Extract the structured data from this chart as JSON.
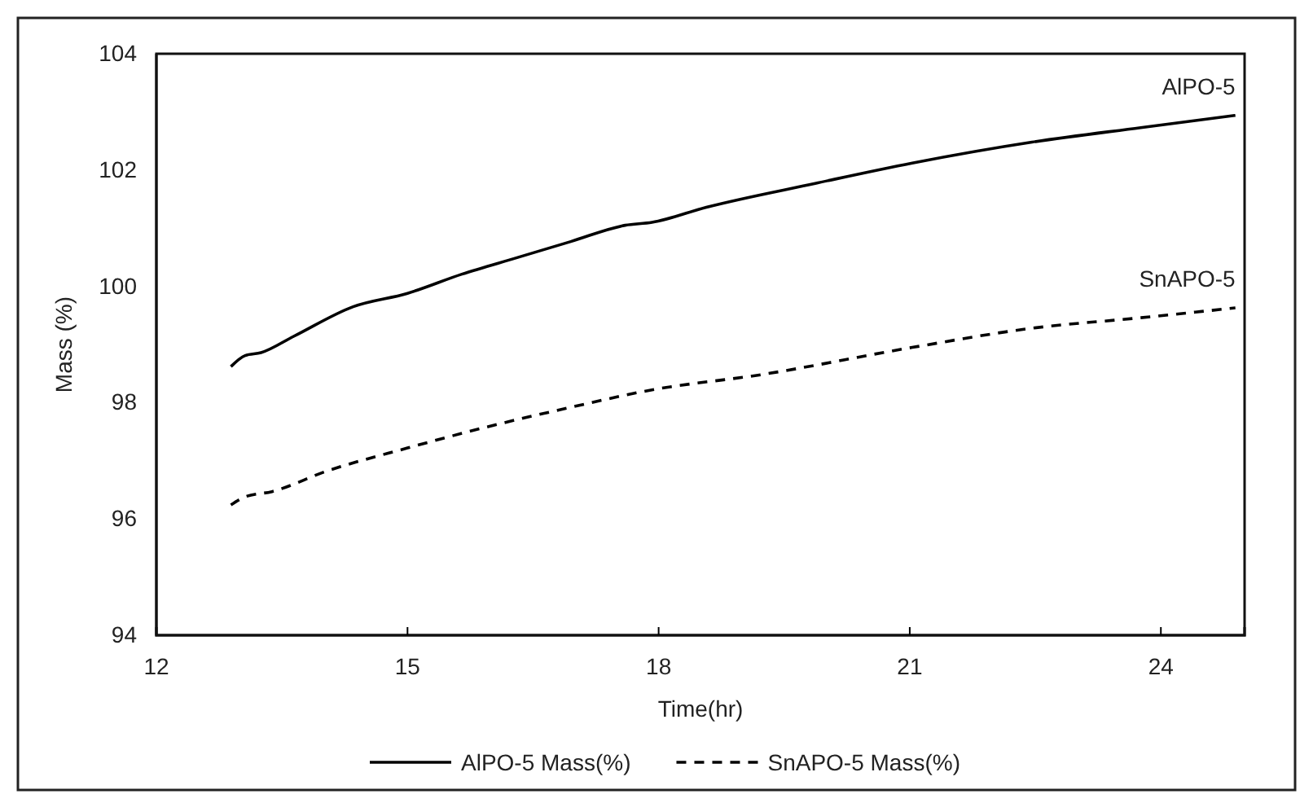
{
  "chart_data": {
    "type": "line",
    "xlabel": "Time(hr)",
    "ylabel": "Mass (%)",
    "xlim": [
      12,
      25
    ],
    "xticks": [
      12,
      15,
      18,
      21,
      24
    ],
    "ylim": [
      94,
      104
    ],
    "yticks": [
      94,
      96,
      98,
      100,
      102,
      104
    ],
    "grid": false,
    "legend": "bottom",
    "marker": "none",
    "annotations": [
      {
        "text": "AlPO-5",
        "x": 24.89,
        "y": 102.94
      },
      {
        "text": "SnAPO-5",
        "x": 24.89,
        "y": 99.63
      }
    ],
    "series": [
      {
        "name": "AlPO-5 Mass(%)",
        "color": "#000000",
        "line_style": "solid",
        "x": [
          12.89,
          13.06,
          13.25,
          13.64,
          14.35,
          15.0,
          15.65,
          16.3,
          16.95,
          17.6,
          17.92,
          18.57,
          19.87,
          21.03,
          22.46,
          23.76,
          24.89
        ],
        "values": [
          98.62,
          98.81,
          98.86,
          99.14,
          99.65,
          99.88,
          100.21,
          100.49,
          100.77,
          101.05,
          101.1,
          101.36,
          101.77,
          102.12,
          102.48,
          102.73,
          102.94
        ]
      },
      {
        "name": "SnAPO-5 Mass(%)",
        "color": "#000000",
        "line_style": "dashed",
        "x": [
          12.89,
          13.06,
          13.38,
          14.03,
          15.0,
          15.97,
          16.95,
          17.92,
          19.22,
          21.03,
          22.46,
          23.76,
          24.89
        ],
        "values": [
          96.24,
          96.38,
          96.47,
          96.82,
          97.22,
          97.59,
          97.92,
          98.22,
          98.48,
          98.95,
          99.28,
          99.46,
          99.63
        ]
      }
    ]
  }
}
